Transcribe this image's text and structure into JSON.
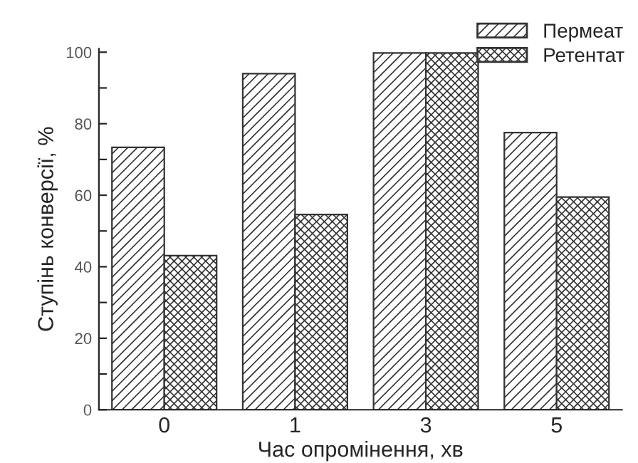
{
  "chart_data": {
    "type": "bar",
    "xlabel": "Час опромінення, хв",
    "ylabel": "Ступінь конверсії, %",
    "categories": [
      "0",
      "1",
      "3",
      "5"
    ],
    "series": [
      {
        "name": "Пермеат",
        "color": "#333333",
        "values": [
          73.4,
          94.0,
          99.8,
          77.5
        ]
      },
      {
        "name": "Ретентат",
        "color": "#333333",
        "values": [
          43.1,
          54.6,
          99.8,
          59.5
        ]
      }
    ],
    "ylim": [
      0,
      101
    ],
    "yticks": [
      0,
      {
        "value": 10,
        "label": null
      },
      20,
      {
        "value": 30,
        "label": null
      },
      40,
      {
        "value": 50,
        "label": null
      },
      60,
      {
        "value": 70,
        "label": null
      },
      80,
      {
        "value": 90,
        "label": null
      },
      100
    ],
    "grid": false,
    "legend": "top right"
  }
}
